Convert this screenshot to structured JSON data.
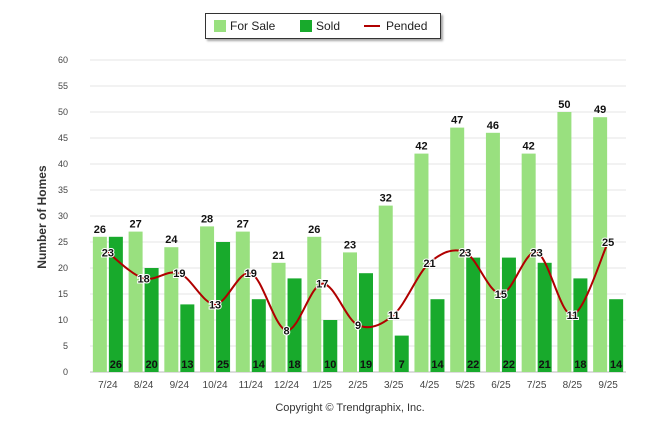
{
  "chart_data": {
    "type": "bar",
    "categories": [
      "7/24",
      "8/24",
      "9/24",
      "10/24",
      "11/24",
      "12/24",
      "1/25",
      "2/25",
      "3/25",
      "4/25",
      "5/25",
      "6/25",
      "7/25",
      "8/25",
      "9/25"
    ],
    "series": [
      {
        "name": "For Sale",
        "type": "bar",
        "color": "#99e07f",
        "values": [
          26,
          27,
          24,
          28,
          27,
          21,
          26,
          23,
          32,
          42,
          47,
          46,
          42,
          50,
          49
        ]
      },
      {
        "name": "Sold",
        "type": "bar",
        "color": "#18aa2c",
        "values": [
          26,
          20,
          13,
          25,
          14,
          18,
          10,
          19,
          7,
          14,
          22,
          22,
          21,
          18,
          14
        ]
      },
      {
        "name": "Pended",
        "type": "line",
        "color": "#b00000",
        "values": [
          23,
          18,
          19,
          13,
          19,
          8,
          17,
          9,
          11,
          21,
          23,
          15,
          23,
          11,
          25
        ]
      }
    ],
    "ylabel": "Number of Homes",
    "ylim": [
      0,
      60
    ],
    "yticks": [
      0,
      5,
      10,
      15,
      20,
      25,
      30,
      35,
      40,
      45,
      50,
      55,
      60
    ],
    "grid": true,
    "legend_position": "top-center"
  },
  "legend": {
    "for_sale": "For Sale",
    "sold": "Sold",
    "pended": "Pended"
  },
  "footer": {
    "copyright": "Copyright © Trendgraphix, Inc."
  }
}
